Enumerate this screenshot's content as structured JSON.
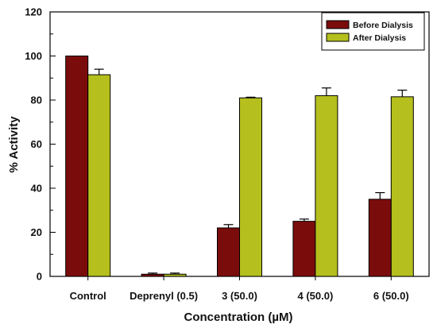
{
  "chart_data": {
    "type": "bar",
    "categories": [
      "Control",
      "Deprenyl (0.5)",
      "3 (50.0)",
      "4 (50.0)",
      "6 (50.0)"
    ],
    "series": [
      {
        "name": "Before Dialysis",
        "color": "#7b0c0c",
        "values": [
          100,
          1,
          22,
          25,
          35
        ],
        "errors": [
          0,
          0.5,
          1.5,
          1,
          3
        ]
      },
      {
        "name": "After Dialysis",
        "color": "#b5bf1e",
        "values": [
          91.5,
          1,
          81,
          82,
          81.5
        ],
        "errors": [
          2.5,
          0.5,
          0.3,
          3.5,
          3
        ]
      }
    ],
    "xlabel": "Concentration (µM)",
    "ylabel": "% Activity",
    "ylim": [
      0,
      120
    ],
    "yticks": [
      "0",
      "20",
      "40",
      "60",
      "80",
      "100",
      "120"
    ],
    "legend_position": "top-right",
    "grid": false
  }
}
